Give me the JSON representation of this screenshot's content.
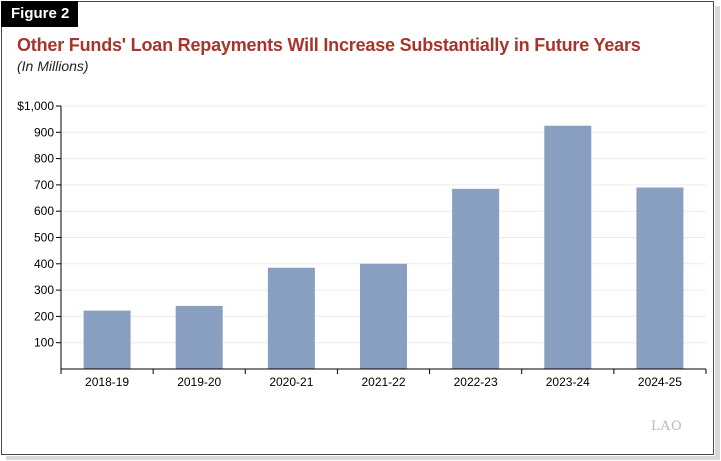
{
  "figure_label": "Figure 2",
  "watermark": "LAO",
  "colors": {
    "title": "#a8342a",
    "bar": "#889fc2",
    "grid": "#ececec",
    "axis": "#000000"
  },
  "chart_data": {
    "type": "bar",
    "title": "Other Funds' Loan Repayments Will Increase Substantially in Future Years",
    "subtitle": "(In Millions)",
    "xlabel": "",
    "ylabel": "",
    "categories": [
      "2018-19",
      "2019-20",
      "2020-21",
      "2021-22",
      "2022-23",
      "2023-24",
      "2024-25"
    ],
    "values": [
      222,
      240,
      385,
      400,
      685,
      925,
      690
    ],
    "ylim": [
      0,
      1000
    ],
    "yticks": [
      {
        "value": 100,
        "label": "100"
      },
      {
        "value": 200,
        "label": "200"
      },
      {
        "value": 300,
        "label": "300"
      },
      {
        "value": 400,
        "label": "400"
      },
      {
        "value": 500,
        "label": "500"
      },
      {
        "value": 600,
        "label": "600"
      },
      {
        "value": 700,
        "label": "700"
      },
      {
        "value": 800,
        "label": "800"
      },
      {
        "value": 900,
        "label": "900"
      },
      {
        "value": 1000,
        "label": "$1,000"
      }
    ],
    "grid": true,
    "legend": "none"
  }
}
